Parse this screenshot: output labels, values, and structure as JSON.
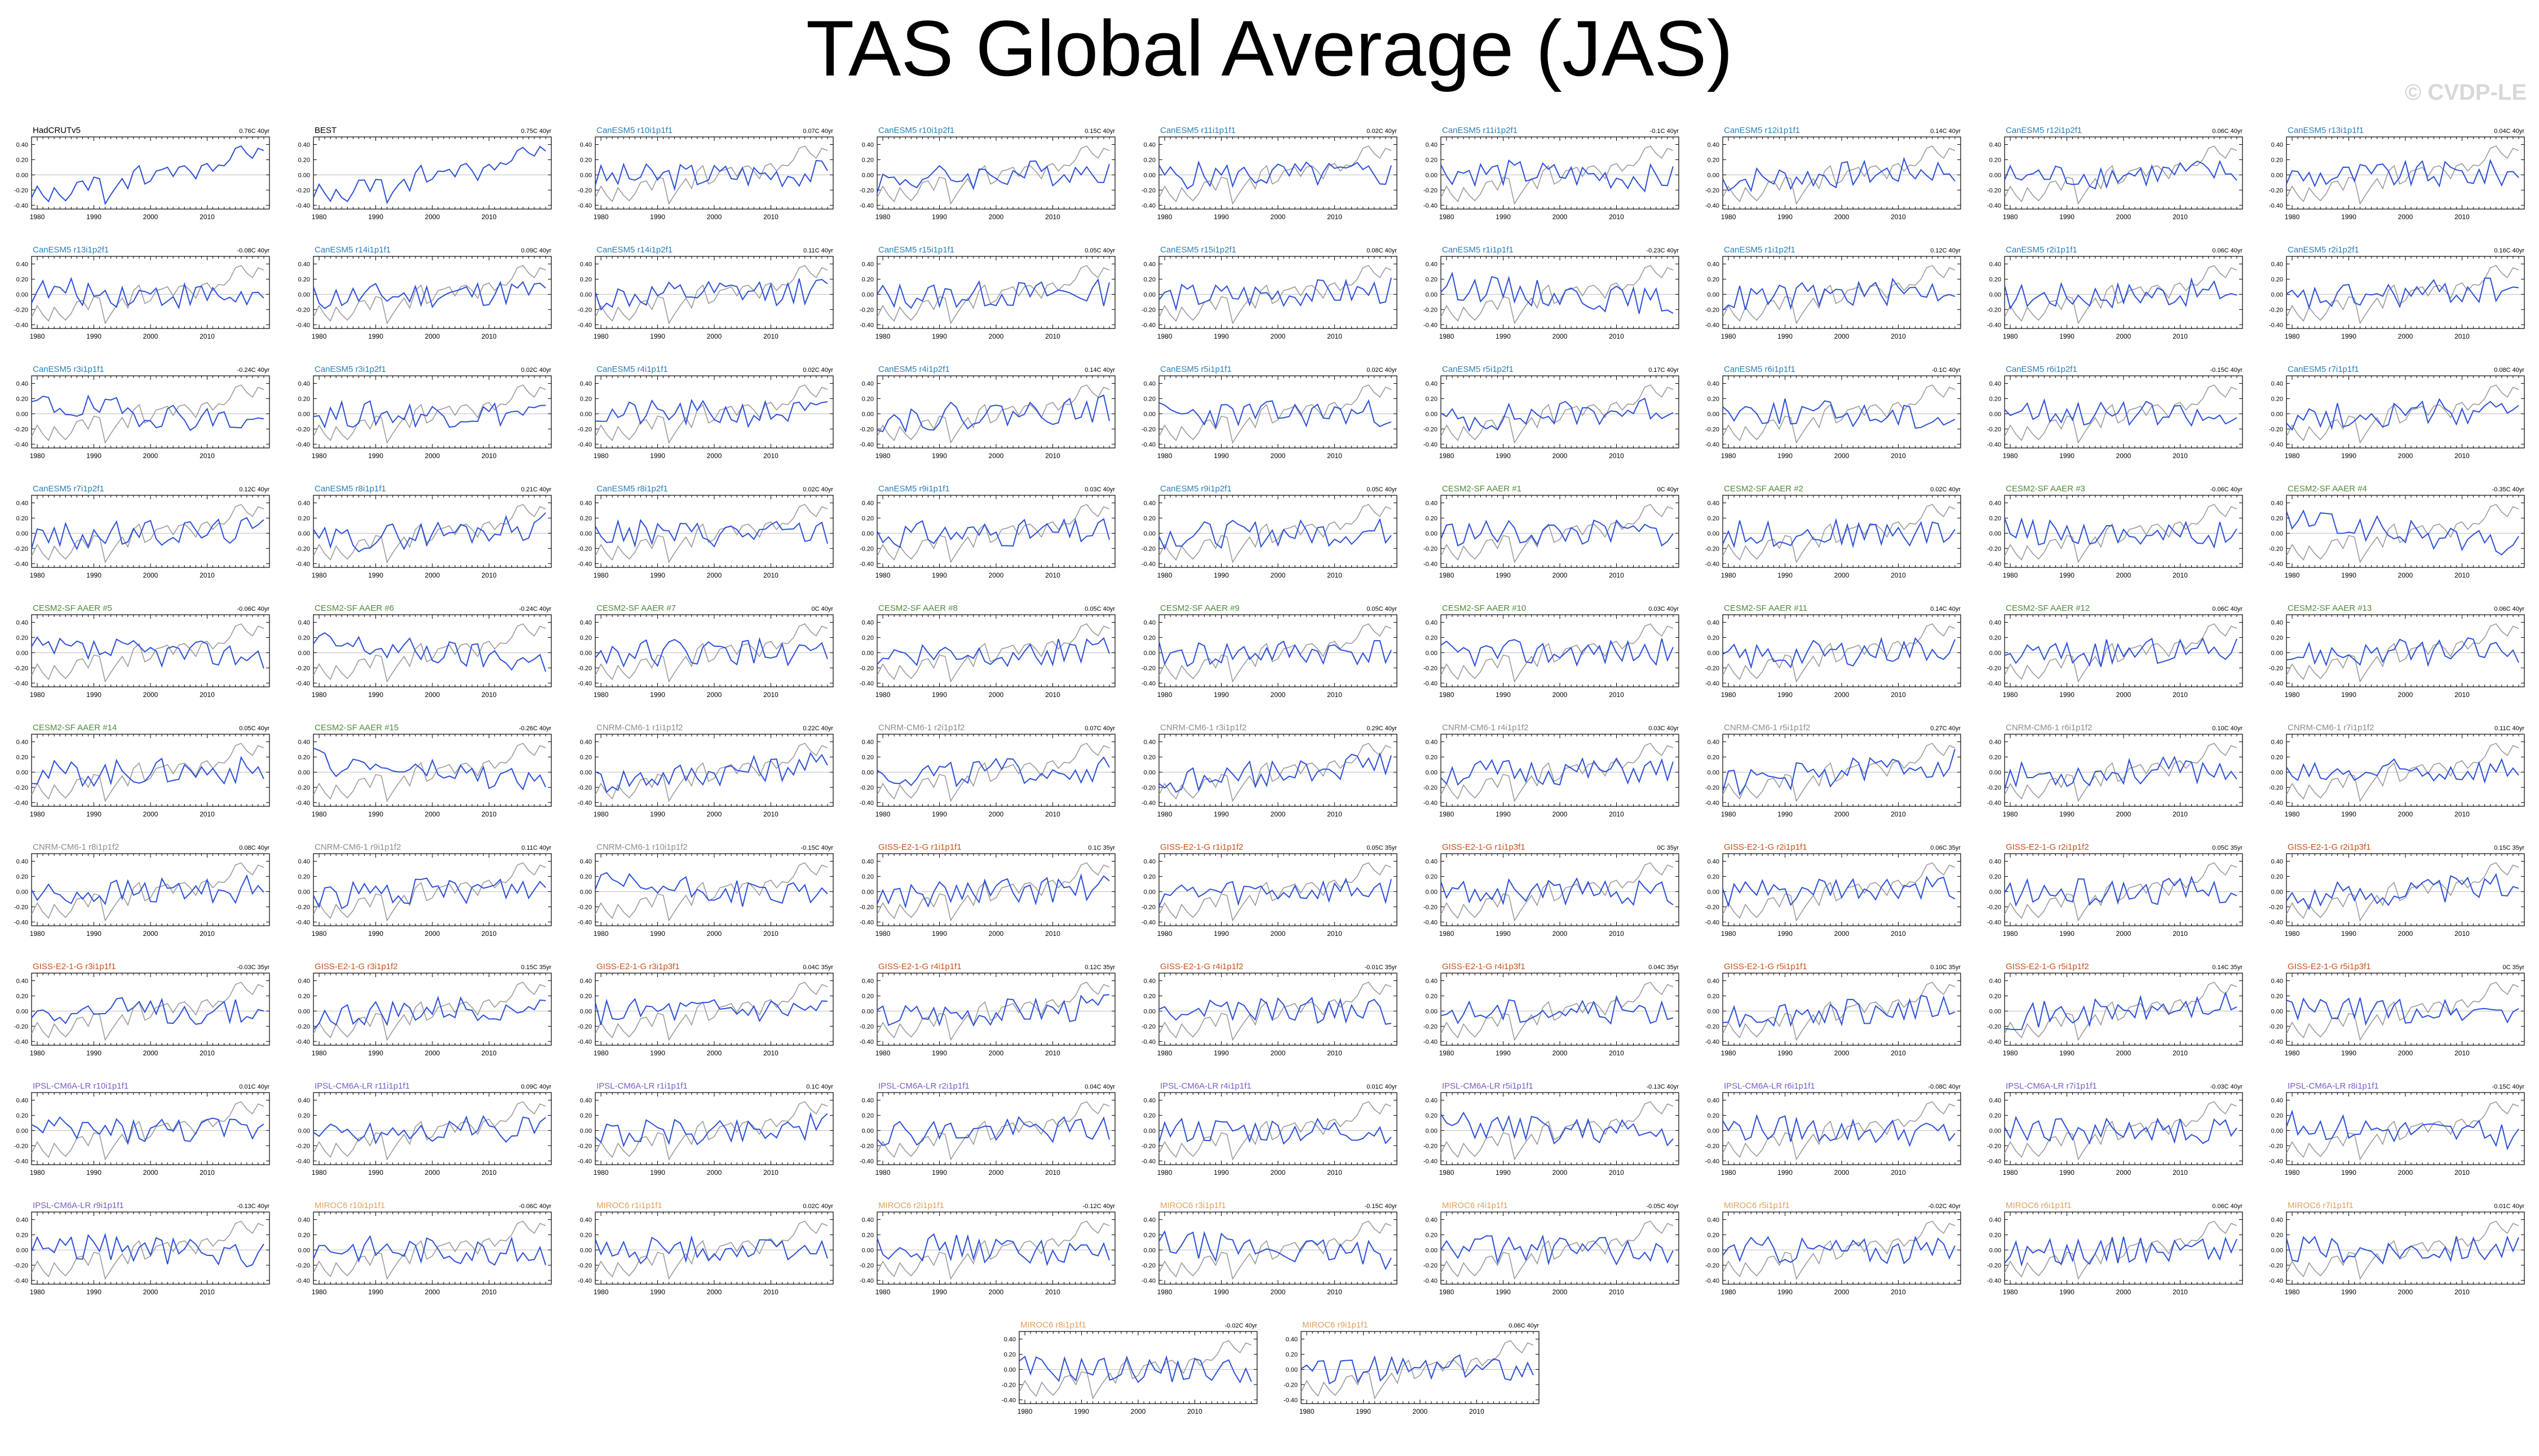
{
  "title": "TAS Global Average (JAS)",
  "watermark": "© CVDP-LE",
  "colors": {
    "observed_line": "#9a9a9a",
    "model_line": "#2b4fd9",
    "zero_line": "#bdbdbd",
    "label_obs": "#000000",
    "label_canesm5": "#2a7fb8",
    "label_cesm2": "#4e8a3a",
    "label_cnrm": "#8c8c8c",
    "label_giss": "#c8501e",
    "label_ipsl": "#7b5cc4",
    "label_miroc": "#e0a05a"
  },
  "chart_data": {
    "type": "line",
    "title": "TAS Global Average (JAS)",
    "x_ticks": [
      1980,
      1990,
      2000,
      2010
    ],
    "y_ticks": [
      "0.40",
      "0.20",
      "0.00",
      "-0.20",
      "-0.40"
    ],
    "xlim": [
      1979,
      2021
    ],
    "ylim": [
      -0.45,
      0.5
    ],
    "grid": false,
    "panels": [
      {
        "label": "HadCRUTv5",
        "trend": "0.76C 40yr",
        "group": "obs"
      },
      {
        "label": "BEST",
        "trend": "0.75C 40yr",
        "group": "obs"
      },
      {
        "label": "CanESM5 r10i1p1f1",
        "trend": "0.07C 40yr",
        "group": "canesm5"
      },
      {
        "label": "CanESM5 r10i1p2f1",
        "trend": "0.15C 40yr",
        "group": "canesm5"
      },
      {
        "label": "CanESM5 r11i1p1f1",
        "trend": "0.02C 40yr",
        "group": "canesm5"
      },
      {
        "label": "CanESM5 r11i1p2f1",
        "trend": "-0.1C 40yr",
        "group": "canesm5"
      },
      {
        "label": "CanESM5 r12i1p1f1",
        "trend": "0.14C 40yr",
        "group": "canesm5"
      },
      {
        "label": "CanESM5 r12i1p2f1",
        "trend": "0.06C 40yr",
        "group": "canesm5"
      },
      {
        "label": "CanESM5 r13i1p1f1",
        "trend": "0.04C 40yr",
        "group": "canesm5"
      },
      {
        "label": "CanESM5 r13i1p2f1",
        "trend": "-0.08C 40yr",
        "group": "canesm5"
      },
      {
        "label": "CanESM5 r14i1p1f1",
        "trend": "0.09C 40yr",
        "group": "canesm5"
      },
      {
        "label": "CanESM5 r14i1p2f1",
        "trend": "0.11C 40yr",
        "group": "canesm5"
      },
      {
        "label": "CanESM5 r15i1p1f1",
        "trend": "0.05C 40yr",
        "group": "canesm5"
      },
      {
        "label": "CanESM5 r15i1p2f1",
        "trend": "0.08C 40yr",
        "group": "canesm5"
      },
      {
        "label": "CanESM5 r1i1p1f1",
        "trend": "-0.23C 40yr",
        "group": "canesm5"
      },
      {
        "label": "CanESM5 r1i1p2f1",
        "trend": "0.12C 40yr",
        "group": "canesm5"
      },
      {
        "label": "CanESM5 r2i1p1f1",
        "trend": "0.06C 40yr",
        "group": "canesm5"
      },
      {
        "label": "CanESM5 r2i1p2f1",
        "trend": "0.16C 40yr",
        "group": "canesm5"
      },
      {
        "label": "CanESM5 r3i1p1f1",
        "trend": "-0.24C 40yr",
        "group": "canesm5"
      },
      {
        "label": "CanESM5 r3i1p2f1",
        "trend": "0.02C 40yr",
        "group": "canesm5"
      },
      {
        "label": "CanESM5 r4i1p1f1",
        "trend": "0.02C 40yr",
        "group": "canesm5"
      },
      {
        "label": "CanESM5 r4i1p2f1",
        "trend": "0.14C 40yr",
        "group": "canesm5"
      },
      {
        "label": "CanESM5 r5i1p1f1",
        "trend": "0.02C 40yr",
        "group": "canesm5"
      },
      {
        "label": "CanESM5 r5i1p2f1",
        "trend": "0.17C 40yr",
        "group": "canesm5"
      },
      {
        "label": "CanESM5 r6i1p1f1",
        "trend": "-0.1C 40yr",
        "group": "canesm5"
      },
      {
        "label": "CanESM5 r6i1p2f1",
        "trend": "-0.15C 40yr",
        "group": "canesm5"
      },
      {
        "label": "CanESM5 r7i1p1f1",
        "trend": "0.08C 40yr",
        "group": "canesm5"
      },
      {
        "label": "CanESM5 r7i1p2f1",
        "trend": "0.12C 40yr",
        "group": "canesm5"
      },
      {
        "label": "CanESM5 r8i1p1f1",
        "trend": "0.21C 40yr",
        "group": "canesm5"
      },
      {
        "label": "CanESM5 r8i1p2f1",
        "trend": "0.02C 40yr",
        "group": "canesm5"
      },
      {
        "label": "CanESM5 r9i1p1f1",
        "trend": "0.03C 40yr",
        "group": "canesm5"
      },
      {
        "label": "CanESM5 r9i1p2f1",
        "trend": "0.05C 40yr",
        "group": "canesm5"
      },
      {
        "label": "CESM2-SF AAER #1",
        "trend": "0C 40yr",
        "group": "cesm2"
      },
      {
        "label": "CESM2-SF AAER #2",
        "trend": "0.02C 40yr",
        "group": "cesm2"
      },
      {
        "label": "CESM2-SF AAER #3",
        "trend": "-0.06C 40yr",
        "group": "cesm2"
      },
      {
        "label": "CESM2-SF AAER #4",
        "trend": "-0.35C 40yr",
        "group": "cesm2"
      },
      {
        "label": "CESM2-SF AAER #5",
        "trend": "-0.06C 40yr",
        "group": "cesm2"
      },
      {
        "label": "CESM2-SF AAER #6",
        "trend": "-0.24C 40yr",
        "group": "cesm2"
      },
      {
        "label": "CESM2-SF AAER #7",
        "trend": "0C 40yr",
        "group": "cesm2"
      },
      {
        "label": "CESM2-SF AAER #8",
        "trend": "0.05C 40yr",
        "group": "cesm2"
      },
      {
        "label": "CESM2-SF AAER #9",
        "trend": "0.05C 40yr",
        "group": "cesm2"
      },
      {
        "label": "CESM2-SF AAER #10",
        "trend": "0.03C 40yr",
        "group": "cesm2"
      },
      {
        "label": "CESM2-SF AAER #11",
        "trend": "0.14C 40yr",
        "group": "cesm2"
      },
      {
        "label": "CESM2-SF AAER #12",
        "trend": "0.06C 40yr",
        "group": "cesm2"
      },
      {
        "label": "CESM2-SF AAER #13",
        "trend": "0.06C 40yr",
        "group": "cesm2"
      },
      {
        "label": "CESM2-SF AAER #14",
        "trend": "0.05C 40yr",
        "group": "cesm2"
      },
      {
        "label": "CESM2-SF AAER #15",
        "trend": "-0.26C 40yr",
        "group": "cesm2"
      },
      {
        "label": "CNRM-CM6-1 r1i1p1f2",
        "trend": "0.22C 40yr",
        "group": "cnrm"
      },
      {
        "label": "CNRM-CM6-1 r2i1p1f2",
        "trend": "0.07C 40yr",
        "group": "cnrm"
      },
      {
        "label": "CNRM-CM6-1 r3i1p1f2",
        "trend": "0.29C 40yr",
        "group": "cnrm"
      },
      {
        "label": "CNRM-CM6-1 r4i1p1f2",
        "trend": "0.03C 40yr",
        "group": "cnrm"
      },
      {
        "label": "CNRM-CM6-1 r5i1p1f2",
        "trend": "0.27C 40yr",
        "group": "cnrm"
      },
      {
        "label": "CNRM-CM6-1 r6i1p1f2",
        "trend": "0.10C 40yr",
        "group": "cnrm"
      },
      {
        "label": "CNRM-CM6-1 r7i1p1f2",
        "trend": "0.11C 40yr",
        "group": "cnrm"
      },
      {
        "label": "CNRM-CM6-1 r8i1p1f2",
        "trend": "0.08C 40yr",
        "group": "cnrm"
      },
      {
        "label": "CNRM-CM6-1 r9i1p1f2",
        "trend": "0.11C 40yr",
        "group": "cnrm"
      },
      {
        "label": "CNRM-CM6-1 r10i1p1f2",
        "trend": "-0.15C 40yr",
        "group": "cnrm"
      },
      {
        "label": "GISS-E2-1-G r1i1p1f1",
        "trend": "0.1C 35yr",
        "group": "giss"
      },
      {
        "label": "GISS-E2-1-G r1i1p1f2",
        "trend": "0.05C 35yr",
        "group": "giss"
      },
      {
        "label": "GISS-E2-1-G r1i1p3f1",
        "trend": "0C 35yr",
        "group": "giss"
      },
      {
        "label": "GISS-E2-1-G r2i1p1f1",
        "trend": "0.06C 35yr",
        "group": "giss"
      },
      {
        "label": "GISS-E2-1-G r2i1p1f2",
        "trend": "0.05C 35yr",
        "group": "giss"
      },
      {
        "label": "GISS-E2-1-G r2i1p3f1",
        "trend": "0.15C 35yr",
        "group": "giss"
      },
      {
        "label": "GISS-E2-1-G r3i1p1f1",
        "trend": "-0.03C 35yr",
        "group": "giss"
      },
      {
        "label": "GISS-E2-1-G r3i1p1f2",
        "trend": "0.15C 35yr",
        "group": "giss"
      },
      {
        "label": "GISS-E2-1-G r3i1p3f1",
        "trend": "0.04C 35yr",
        "group": "giss"
      },
      {
        "label": "GISS-E2-1-G r4i1p1f1",
        "trend": "0.12C 35yr",
        "group": "giss"
      },
      {
        "label": "GISS-E2-1-G r4i1p1f2",
        "trend": "-0.01C 35yr",
        "group": "giss"
      },
      {
        "label": "GISS-E2-1-G r4i1p3f1",
        "trend": "0.04C 35yr",
        "group": "giss"
      },
      {
        "label": "GISS-E2-1-G r5i1p1f1",
        "trend": "0.10C 35yr",
        "group": "giss"
      },
      {
        "label": "GISS-E2-1-G r5i1p1f2",
        "trend": "0.14C 35yr",
        "group": "giss"
      },
      {
        "label": "GISS-E2-1-G r5i1p3f1",
        "trend": "0C 35yr",
        "group": "giss"
      },
      {
        "label": "IPSL-CM6A-LR r10i1p1f1",
        "trend": "0.01C 40yr",
        "group": "ipsl"
      },
      {
        "label": "IPSL-CM6A-LR r11i1p1f1",
        "trend": "0.09C 40yr",
        "group": "ipsl"
      },
      {
        "label": "IPSL-CM6A-LR r1i1p1f1",
        "trend": "0.1C 40yr",
        "group": "ipsl"
      },
      {
        "label": "IPSL-CM6A-LR r2i1p1f1",
        "trend": "0.04C 40yr",
        "group": "ipsl"
      },
      {
        "label": "IPSL-CM6A-LR r4i1p1f1",
        "trend": "0.01C 40yr",
        "group": "ipsl"
      },
      {
        "label": "IPSL-CM6A-LR r5i1p1f1",
        "trend": "-0.13C 40yr",
        "group": "ipsl"
      },
      {
        "label": "IPSL-CM6A-LR r6i1p1f1",
        "trend": "-0.08C 40yr",
        "group": "ipsl"
      },
      {
        "label": "IPSL-CM6A-LR r7i1p1f1",
        "trend": "-0.03C 40yr",
        "group": "ipsl"
      },
      {
        "label": "IPSL-CM6A-LR r8i1p1f1",
        "trend": "-0.15C 40yr",
        "group": "ipsl"
      },
      {
        "label": "IPSL-CM6A-LR r9i1p1f1",
        "trend": "-0.13C 40yr",
        "group": "ipsl"
      },
      {
        "label": "MIROC6 r10i1p1f1",
        "trend": "-0.06C 40yr",
        "group": "miroc"
      },
      {
        "label": "MIROC6 r1i1p1f1",
        "trend": "0.02C 40yr",
        "group": "miroc"
      },
      {
        "label": "MIROC6 r2i1p1f1",
        "trend": "-0.12C 40yr",
        "group": "miroc"
      },
      {
        "label": "MIROC6 r3i1p1f1",
        "trend": "-0.15C 40yr",
        "group": "miroc"
      },
      {
        "label": "MIROC6 r4i1p1f1",
        "trend": "-0.05C 40yr",
        "group": "miroc"
      },
      {
        "label": "MIROC6 r5i1p1f1",
        "trend": "-0.02C 40yr",
        "group": "miroc"
      },
      {
        "label": "MIROC6 r6i1p1f1",
        "trend": "0.06C 40yr",
        "group": "miroc"
      },
      {
        "label": "MIROC6 r7i1p1f1",
        "trend": "0.01C 40yr",
        "group": "miroc"
      },
      {
        "label": "MIROC6 r8i1p1f1",
        "trend": "-0.02C 40yr",
        "group": "miroc"
      },
      {
        "label": "MIROC6 r9i1p1f1",
        "trend": "0.06C 40yr",
        "group": "miroc"
      }
    ],
    "observed_series": {
      "x": [
        1979,
        1980,
        1981,
        1982,
        1983,
        1984,
        1985,
        1986,
        1987,
        1988,
        1989,
        1990,
        1991,
        1992,
        1993,
        1994,
        1995,
        1996,
        1997,
        1998,
        1999,
        2000,
        2001,
        2002,
        2003,
        2004,
        2005,
        2006,
        2007,
        2008,
        2009,
        2010,
        2011,
        2012,
        2013,
        2014,
        2015,
        2016,
        2017,
        2018,
        2019,
        2020
      ],
      "values": [
        -0.3,
        -0.15,
        -0.27,
        -0.35,
        -0.17,
        -0.27,
        -0.34,
        -0.25,
        -0.1,
        -0.08,
        -0.2,
        -0.03,
        -0.05,
        -0.38,
        -0.26,
        -0.15,
        -0.05,
        -0.18,
        0.05,
        0.12,
        -0.12,
        -0.08,
        0.05,
        0.07,
        0.1,
        -0.02,
        0.1,
        0.12,
        0.05,
        -0.05,
        0.12,
        0.15,
        0.05,
        0.13,
        0.12,
        0.2,
        0.35,
        0.38,
        0.28,
        0.22,
        0.35,
        0.32
      ]
    }
  }
}
